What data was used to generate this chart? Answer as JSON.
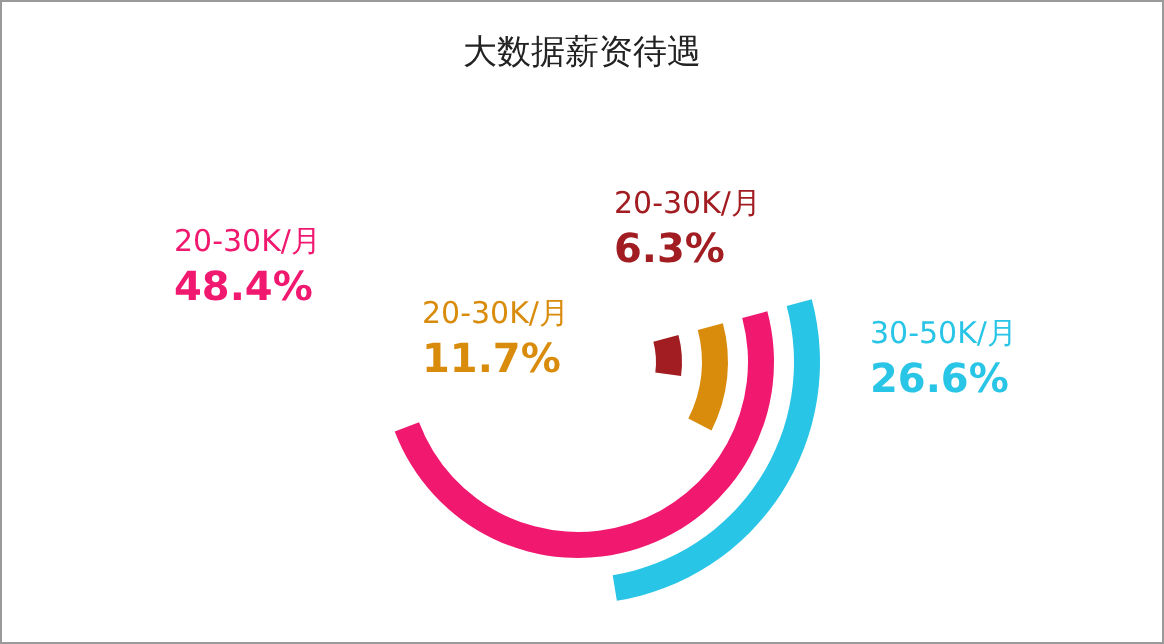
{
  "chart_data": {
    "type": "other",
    "title": "大数据薪资待遇",
    "categories": [
      "30-50K/月",
      "20-30K/月",
      "20-30K/月",
      "20-30K/月"
    ],
    "values": [
      26.6,
      48.4,
      11.7,
      6.3
    ],
    "value_labels": [
      "26.6%",
      "48.4%",
      "11.7%",
      "6.3%"
    ],
    "colors": [
      "#29c5e6",
      "#f0196f",
      "#d98c0c",
      "#a11d22"
    ]
  }
}
